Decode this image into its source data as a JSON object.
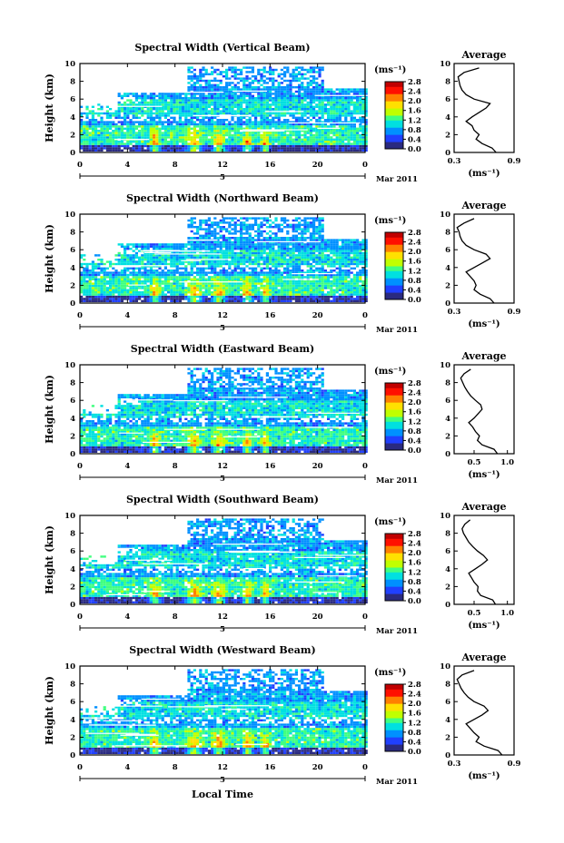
{
  "figure": {
    "x_axis_title": "Local Time",
    "date_label": "Mar 2011",
    "colors": {
      "scale": [
        "#2a2a80",
        "#2040ff",
        "#0090ff",
        "#00e0e0",
        "#40ff80",
        "#c0ff00",
        "#ffe000",
        "#ff8000",
        "#ff1000",
        "#c00000"
      ],
      "background": "#ffffff",
      "panel_base": "#2f6ee0"
    }
  },
  "chart_data": [
    {
      "type": "heatmap",
      "title": "Spectral Width (Vertical Beam)",
      "xlabel": "",
      "ylabel": "Height (km)",
      "xlim": [
        0,
        24
      ],
      "ylim": [
        0,
        10
      ],
      "x_ticks": [
        "0",
        "4",
        "8",
        "12",
        "16",
        "20",
        "0"
      ],
      "y_ticks": [
        "0",
        "2",
        "4",
        "6",
        "8",
        "10"
      ],
      "day_marker": "5",
      "colorbar": {
        "unit": "(ms⁻¹)",
        "ticks": [
          "0.0",
          "0.4",
          "0.8",
          "1.2",
          "1.6",
          "2.0",
          "2.4",
          "2.8"
        ]
      },
      "average_profile": {
        "title": "Average",
        "xlabel": "(ms⁻¹)",
        "x_ticks": [
          "0.3",
          "0.9"
        ],
        "xlim": [
          0.3,
          0.9
        ],
        "height": [
          0,
          0.5,
          1,
          1.5,
          2,
          2.5,
          3,
          3.5,
          4,
          4.5,
          5,
          5.5,
          6,
          6.5,
          7,
          7.5,
          8,
          8.5,
          9,
          9.5
        ],
        "value": [
          0.72,
          0.68,
          0.58,
          0.52,
          0.55,
          0.5,
          0.48,
          0.42,
          0.48,
          0.55,
          0.62,
          0.66,
          0.5,
          0.42,
          0.38,
          0.36,
          0.35,
          0.34,
          0.4,
          0.55
        ]
      }
    },
    {
      "type": "heatmap",
      "title": "Spectral Width (Northward Beam)",
      "xlabel": "",
      "ylabel": "Height (km)",
      "xlim": [
        0,
        24
      ],
      "ylim": [
        0,
        10
      ],
      "x_ticks": [
        "0",
        "4",
        "8",
        "12",
        "16",
        "20",
        "0"
      ],
      "y_ticks": [
        "0",
        "2",
        "4",
        "6",
        "8",
        "10"
      ],
      "day_marker": "5",
      "colorbar": {
        "unit": "(ms⁻¹)",
        "ticks": [
          "0.0",
          "0.4",
          "0.8",
          "1.2",
          "1.6",
          "2.0",
          "2.4",
          "2.8"
        ]
      },
      "average_profile": {
        "title": "Average",
        "xlabel": "(ms⁻¹)",
        "x_ticks": [
          "0.3",
          "0.9"
        ],
        "xlim": [
          0.3,
          0.9
        ],
        "height": [
          0,
          0.5,
          1,
          1.5,
          2,
          2.5,
          3,
          3.5,
          4,
          4.5,
          5,
          5.5,
          6,
          6.5,
          7,
          7.5,
          8,
          8.5,
          9,
          9.5
        ],
        "value": [
          0.7,
          0.66,
          0.56,
          0.5,
          0.52,
          0.5,
          0.46,
          0.42,
          0.5,
          0.58,
          0.66,
          0.62,
          0.5,
          0.42,
          0.38,
          0.36,
          0.35,
          0.33,
          0.4,
          0.5
        ]
      }
    },
    {
      "type": "heatmap",
      "title": "Spectral Width (Eastward Beam)",
      "xlabel": "",
      "ylabel": "Height (km)",
      "xlim": [
        0,
        24
      ],
      "ylim": [
        0,
        10
      ],
      "x_ticks": [
        "0",
        "4",
        "8",
        "12",
        "16",
        "20",
        "0"
      ],
      "y_ticks": [
        "0",
        "2",
        "4",
        "6",
        "8",
        "10"
      ],
      "day_marker": "5",
      "colorbar": {
        "unit": "(ms⁻¹)",
        "ticks": [
          "0.0",
          "0.4",
          "0.8",
          "1.2",
          "1.6",
          "2.0",
          "2.4",
          "2.8"
        ]
      },
      "average_profile": {
        "title": "Average",
        "xlabel": "(ms⁻¹)",
        "x_ticks": [
          "0.5",
          "1.0"
        ],
        "xlim": [
          0.2,
          1.1
        ],
        "height": [
          0,
          0.5,
          1,
          1.5,
          2,
          2.5,
          3,
          3.5,
          4,
          4.5,
          5,
          5.5,
          6,
          6.5,
          7,
          7.5,
          8,
          8.5,
          9,
          9.5
        ],
        "value": [
          0.85,
          0.8,
          0.62,
          0.55,
          0.58,
          0.52,
          0.48,
          0.42,
          0.5,
          0.56,
          0.62,
          0.6,
          0.52,
          0.45,
          0.4,
          0.36,
          0.33,
          0.3,
          0.35,
          0.45
        ]
      }
    },
    {
      "type": "heatmap",
      "title": "Spectral Width (Southward Beam)",
      "xlabel": "",
      "ylabel": "Height (km)",
      "xlim": [
        0,
        24
      ],
      "ylim": [
        0,
        10
      ],
      "x_ticks": [
        "0",
        "4",
        "8",
        "12",
        "16",
        "20",
        "0"
      ],
      "y_ticks": [
        "0",
        "2",
        "4",
        "6",
        "8",
        "10"
      ],
      "day_marker": "5",
      "colorbar": {
        "unit": "(ms⁻¹)",
        "ticks": [
          "0.0",
          "0.4",
          "0.8",
          "1.2",
          "1.6",
          "2.0",
          "2.4",
          "2.8"
        ]
      },
      "average_profile": {
        "title": "Average",
        "xlabel": "(ms⁻¹)",
        "x_ticks": [
          "0.5",
          "1.0"
        ],
        "xlim": [
          0.2,
          1.1
        ],
        "height": [
          0,
          0.5,
          1,
          1.5,
          2,
          2.5,
          3,
          3.5,
          4,
          4.5,
          5,
          5.5,
          6,
          6.5,
          7,
          7.5,
          8,
          8.5,
          9,
          9.5
        ],
        "value": [
          0.82,
          0.78,
          0.6,
          0.55,
          0.56,
          0.5,
          0.46,
          0.42,
          0.52,
          0.62,
          0.7,
          0.64,
          0.55,
          0.48,
          0.42,
          0.38,
          0.34,
          0.32,
          0.36,
          0.44
        ]
      }
    },
    {
      "type": "heatmap",
      "title": "Spectral Width (Westward Beam)",
      "xlabel": "Local Time",
      "ylabel": "Height (km)",
      "xlim": [
        0,
        24
      ],
      "ylim": [
        0,
        10
      ],
      "x_ticks": [
        "0",
        "4",
        "8",
        "12",
        "16",
        "20",
        "0"
      ],
      "y_ticks": [
        "0",
        "2",
        "4",
        "6",
        "8",
        "10"
      ],
      "day_marker": "5",
      "colorbar": {
        "unit": "(ms⁻¹)",
        "ticks": [
          "0.0",
          "0.4",
          "0.8",
          "1.2",
          "1.6",
          "2.0",
          "2.4",
          "2.8"
        ]
      },
      "average_profile": {
        "title": "Average",
        "xlabel": "(ms⁻¹)",
        "x_ticks": [
          "0.3",
          "0.9"
        ],
        "xlim": [
          0.3,
          0.9
        ],
        "height": [
          0,
          0.5,
          1,
          1.5,
          2,
          2.5,
          3,
          3.5,
          4,
          4.5,
          5,
          5.5,
          6,
          6.5,
          7,
          7.5,
          8,
          8.5,
          9,
          9.5
        ],
        "value": [
          0.78,
          0.74,
          0.6,
          0.52,
          0.55,
          0.5,
          0.46,
          0.42,
          0.5,
          0.58,
          0.64,
          0.6,
          0.5,
          0.44,
          0.4,
          0.37,
          0.35,
          0.33,
          0.38,
          0.5
        ]
      }
    }
  ]
}
